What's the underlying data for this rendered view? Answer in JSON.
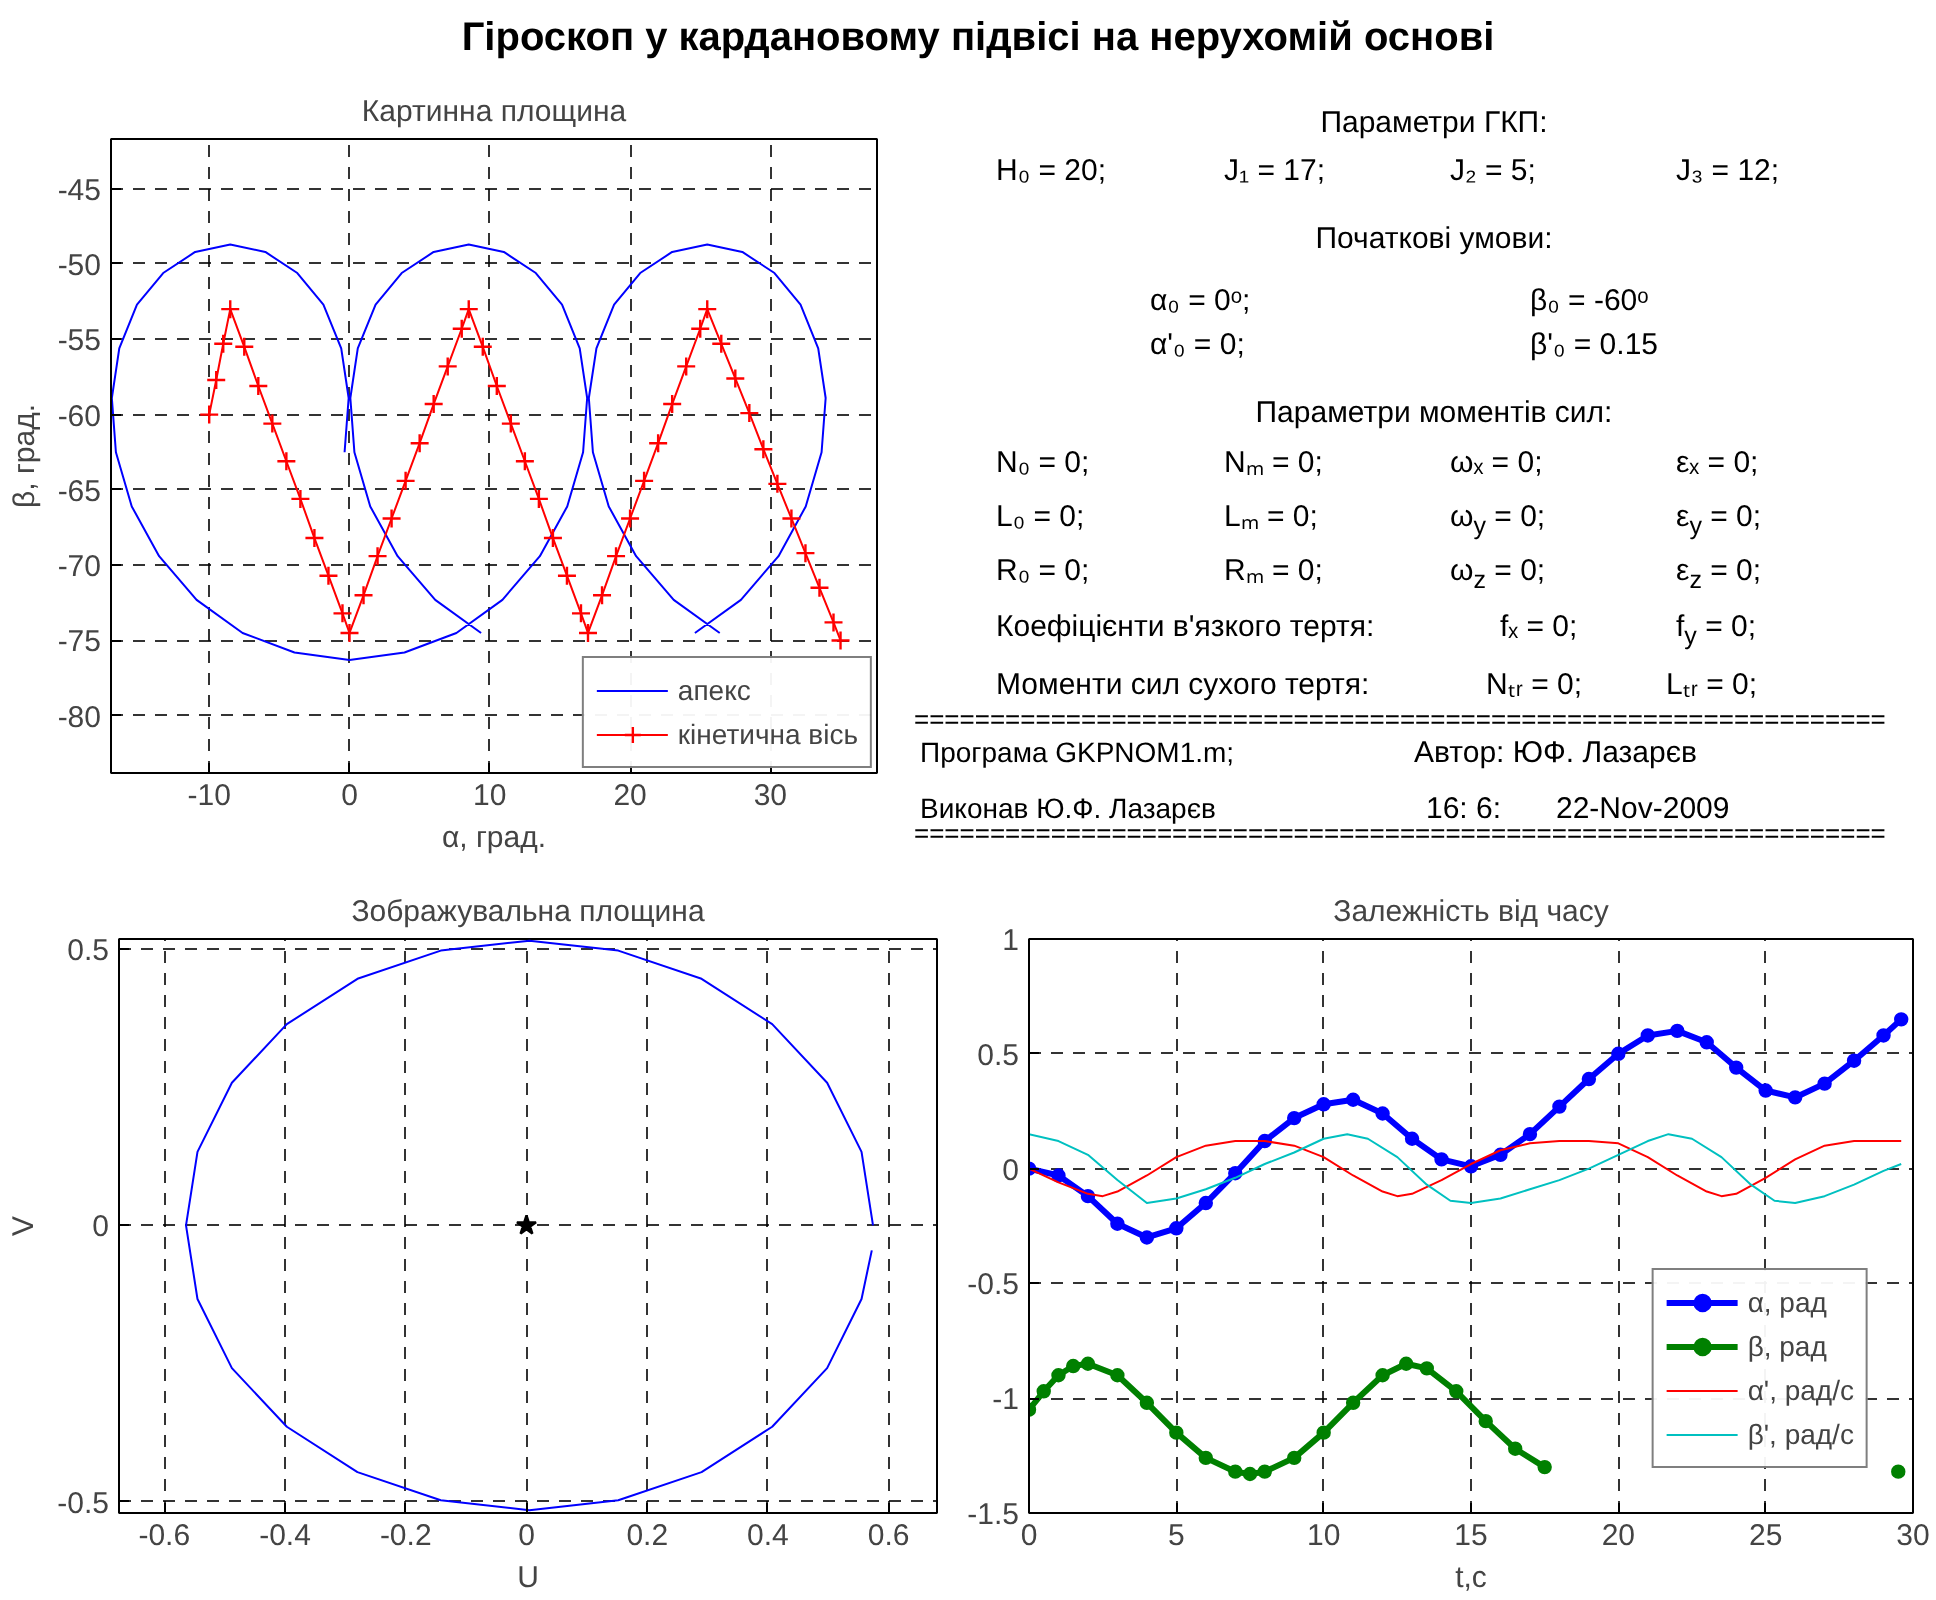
{
  "chart_data": [
    {
      "type": "other",
      "title": "Гіроскоп у кардановому підвісі на нерухомій основі"
    },
    {
      "type": "line",
      "title": "Картинна площина",
      "xlabel": "α, град.",
      "ylabel": "β, град.",
      "xlim": [
        -17,
        37.6
      ],
      "ylim": [
        -83.8,
        -41.7
      ],
      "xticks": [
        -10,
        0,
        10,
        20,
        30
      ],
      "yticks": [
        -80,
        -75,
        -70,
        -65,
        -60,
        -55,
        -50,
        -45
      ],
      "grid": true,
      "legend": "bottom right",
      "series": [
        {
          "name": "апекс",
          "color": "#0000ff",
          "x": [
            -0.35,
            -0.06,
            -0.59,
            -1.86,
            -3.72,
            -6.0,
            -8.5,
            -11.0,
            -13.28,
            -15.15,
            -16.41,
            -16.94,
            -16.65,
            -15.52,
            -13.57,
            -10.9,
            -7.62,
            -3.92,
            0,
            3.92,
            7.62,
            10.9,
            13.57,
            15.52,
            16.65,
            16.94,
            16.41,
            15.15,
            13.28,
            11.0,
            8.5,
            6.0,
            3.72,
            1.86,
            0.59,
            0.06,
            0.35,
            1.48,
            3.43,
            6.11,
            9.38,
            13.08,
            17.0,
            20.92,
            24.62,
            27.9,
            30.58,
            32.52,
            33.65,
            33.94,
            33.41,
            32.15,
            30.29,
            28.0,
            25.5,
            23.0,
            20.72,
            18.86,
            17.6,
            17.06,
            17.35,
            18.48,
            20.43,
            23.11,
            26.39
          ],
          "values": [
            -62.5,
            -58.9,
            -55.6,
            -52.7,
            -50.6,
            -49.2,
            -48.7,
            -49.2,
            -50.6,
            -52.7,
            -55.6,
            -58.9,
            -62.5,
            -66.1,
            -69.4,
            -72.3,
            -74.5,
            -75.8,
            -76.3,
            -75.8,
            -74.5,
            -72.3,
            -69.4,
            -66.1,
            -62.5,
            -58.9,
            -55.6,
            -52.7,
            -50.6,
            -49.2,
            -48.7,
            -49.2,
            -50.6,
            -52.7,
            -55.6,
            -58.9,
            -62.5,
            -66.1,
            -69.4,
            -72.3,
            -74.5,
            null,
            null,
            null,
            -74.5,
            -72.3,
            -69.4,
            -66.1,
            -62.5,
            -58.9,
            -55.6,
            -52.7,
            -50.6,
            -49.2,
            -48.7,
            -49.2,
            -50.6,
            -52.7,
            -55.6,
            -58.9,
            -62.5,
            -66.1,
            -69.4,
            -72.3,
            -74.5
          ]
        },
        {
          "name": "кінетична вісь",
          "color": "#ff0000",
          "marker": "cross",
          "x": [
            -10,
            -9.5,
            -9,
            -8.5,
            -7.5,
            -6.5,
            -5.5,
            -4.5,
            -3.5,
            -2.5,
            -1.5,
            -0.5,
            0,
            1,
            2,
            3,
            4,
            5,
            6,
            7,
            8,
            8.5,
            9.5,
            10.5,
            11.5,
            12.5,
            13.5,
            14.5,
            15.5,
            16.5,
            17,
            18,
            19,
            20,
            21,
            22,
            23,
            24,
            25,
            25.5,
            26.5,
            27.5,
            28.5,
            29.5,
            30.5,
            31.5,
            32.5,
            33.5,
            34.5,
            35
          ],
          "values": [
            -60,
            -57.7,
            -55.3,
            -53,
            -55.5,
            -58.1,
            -60.6,
            -63.1,
            -65.6,
            -68.2,
            -70.7,
            -73.2,
            -74.5,
            -72,
            -69.4,
            -66.9,
            -64.4,
            -61.9,
            -59.3,
            -56.8,
            -54.3,
            -53,
            -55.5,
            -58.1,
            -60.6,
            -63.1,
            -65.6,
            -68.2,
            -70.7,
            -73.2,
            -74.5,
            -72,
            -69.4,
            -66.9,
            -64.4,
            -61.9,
            -59.3,
            -56.8,
            -54.3,
            -53,
            -55.3,
            -57.6,
            -59.9,
            -62.3,
            -64.6,
            -66.9,
            -69.2,
            -71.5,
            -73.8,
            -75
          ]
        }
      ]
    },
    {
      "type": "other",
      "annotations": [
        "Параметри ГКП:",
        "H₀ = 20;",
        "J₁ = 17;",
        "J₂ = 5;",
        "J₃ = 12;",
        "Початкові умови:",
        "α₀ = 0ᵒ;",
        "β₀ = -60ᵒ",
        "α'₀ = 0;",
        "β'₀ = 0.15",
        "Параметри моментів сил:",
        "N₀ = 0;",
        "Nₘ = 0;",
        "ωₓ = 0;",
        "εₓ = 0;",
        "L₀ = 0;",
        "Lₘ = 0;",
        "ω$_{y}$ = 0;",
        "ε$_{y}$ = 0;",
        "R₀ = 0;",
        "Rₘ = 0;",
        "ω$_{z}$ = 0;",
        "ε$_{z}$ = 0;",
        "Коефіцієнти в'язкого тертя:",
        "fₓ = 0;",
        "f$_{y}$ = 0;",
        "Моменти сил сухого тертя:",
        "Nₜᵣ = 0;",
        "Lₜᵣ = 0;",
        "================================================================",
        "Програма  GKPNOM1.m;",
        "Автор:  ЮФ. Лазарєв",
        "Виконав  Ю.Ф. Лазарєв",
        "16: 6:",
        "22-Nov-2009",
        "================================================================"
      ]
    },
    {
      "type": "line",
      "title": "Зображувальна площина",
      "xlabel": "U",
      "ylabel": "V",
      "xlim": [
        -0.675,
        0.68
      ],
      "ylim": [
        -0.52,
        0.518
      ],
      "xticks": [
        -0.6,
        -0.4,
        -0.2,
        0,
        0.2,
        0.4,
        0.6
      ],
      "yticks": [
        -0.5,
        0,
        0.5
      ],
      "grid": true,
      "series": [
        {
          "color": "#0000ff",
          "x": [
            0.574,
            0.555,
            0.498,
            0.407,
            0.29,
            0.152,
            0.005,
            -0.142,
            -0.28,
            -0.397,
            -0.488,
            -0.545,
            -0.564,
            -0.545,
            -0.488,
            -0.397,
            -0.28,
            -0.142,
            0.005,
            0.152,
            0.29,
            0.407,
            0.498,
            0.555,
            0.572
          ],
          "values": [
            0,
            0.133,
            0.258,
            0.364,
            0.446,
            0.497,
            0.515,
            0.497,
            0.446,
            0.364,
            0.258,
            0.133,
            0,
            -0.133,
            -0.258,
            -0.364,
            -0.446,
            -0.497,
            -0.515,
            -0.497,
            -0.446,
            -0.364,
            -0.258,
            -0.133,
            -0.045
          ]
        },
        {
          "type": "scatter",
          "color": "#000000",
          "marker": "star",
          "x": [
            0
          ],
          "values": [
            0
          ]
        }
      ]
    },
    {
      "type": "line",
      "title": "Залежність від часу",
      "xlabel": "t,c",
      "xlim": [
        0,
        30
      ],
      "ylim": [
        -1.5,
        1
      ],
      "xticks": [
        0,
        5,
        10,
        15,
        20,
        25,
        30
      ],
      "yticks": [
        -1.5,
        -1,
        -0.5,
        0,
        0.5,
        1
      ],
      "grid": true,
      "legend": "bottom right",
      "series": [
        {
          "name": "α, рад",
          "color": "#0000ff",
          "marker": "circle",
          "x": [
            0,
            1,
            2,
            3,
            4,
            5,
            6,
            7,
            8,
            9,
            10,
            11,
            12,
            13,
            14,
            15,
            16,
            17,
            18,
            19,
            20,
            21,
            22,
            23,
            24,
            25,
            26,
            27,
            28,
            29,
            29.6
          ],
          "values": [
            0,
            -0.03,
            -0.12,
            -0.24,
            -0.3,
            -0.26,
            -0.15,
            -0.02,
            0.12,
            0.22,
            0.28,
            0.3,
            0.24,
            0.13,
            0.04,
            0.01,
            0.06,
            0.15,
            0.27,
            0.39,
            0.5,
            0.58,
            0.6,
            0.55,
            0.44,
            0.34,
            0.31,
            0.37,
            0.47,
            0.58,
            0.65
          ]
        },
        {
          "name": "β, рад",
          "color": "#008000",
          "marker": "circle",
          "x": [
            0,
            0.5,
            1,
            1.5,
            2,
            3,
            4,
            5,
            6,
            7,
            7.5,
            8,
            9,
            10,
            11,
            12,
            12.8,
            13.5,
            14.5,
            15.5,
            16.5,
            17.5,
            18.5,
            29.5
          ],
          "values": [
            -1.05,
            -0.97,
            -0.9,
            -0.86,
            -0.85,
            -0.9,
            -1.02,
            -1.15,
            -1.26,
            -1.32,
            -1.33,
            -1.32,
            -1.26,
            -1.15,
            -1.02,
            -0.9,
            -0.85,
            -0.87,
            -0.97,
            -1.1,
            -1.22,
            -1.3,
            null,
            -1.32
          ]
        },
        {
          "name": "α', рад/с",
          "color": "#ff0000",
          "x": [
            0,
            1,
            2,
            2.5,
            3,
            4,
            5,
            6,
            7,
            8,
            9,
            10,
            11,
            12,
            12.5,
            13,
            14,
            15,
            16,
            17,
            18,
            19,
            20,
            21,
            22,
            23,
            23.5,
            24,
            25,
            26,
            27,
            28,
            29.6
          ],
          "values": [
            0,
            -0.06,
            -0.11,
            -0.12,
            -0.1,
            -0.03,
            0.05,
            0.1,
            0.12,
            0.12,
            0.1,
            0.05,
            -0.03,
            -0.1,
            -0.12,
            -0.11,
            -0.05,
            0.02,
            0.08,
            0.11,
            0.12,
            0.12,
            0.11,
            0.05,
            -0.03,
            -0.1,
            -0.12,
            -0.11,
            -0.04,
            0.04,
            0.1,
            0.12,
            0.12
          ]
        },
        {
          "name": "β', рад/с",
          "color": "#00c0c0",
          "x": [
            0,
            1,
            2,
            3,
            4,
            5,
            6,
            7,
            8,
            9,
            10,
            10.8,
            11.5,
            12.5,
            13.5,
            14.3,
            15,
            16,
            17,
            18,
            19,
            20,
            21,
            21.7,
            22.5,
            23.5,
            24.5,
            25.3,
            26,
            27,
            28,
            29,
            29.6
          ],
          "values": [
            0.15,
            0.12,
            0.06,
            -0.05,
            -0.15,
            -0.13,
            -0.09,
            -0.04,
            0.02,
            0.07,
            0.13,
            0.15,
            0.13,
            0.05,
            -0.07,
            -0.14,
            -0.15,
            -0.13,
            -0.09,
            -0.05,
            0,
            0.06,
            0.12,
            0.15,
            0.13,
            0.05,
            -0.07,
            -0.14,
            -0.15,
            -0.12,
            -0.07,
            -0.01,
            0.02
          ]
        }
      ]
    }
  ]
}
